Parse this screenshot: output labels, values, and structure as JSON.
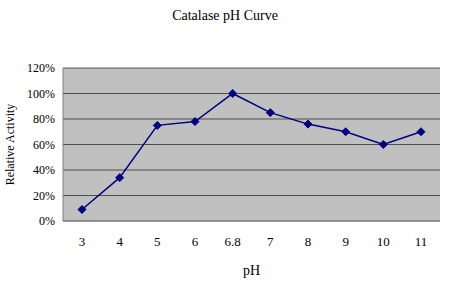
{
  "chart_data": {
    "type": "line",
    "title": "Catalase pH Curve",
    "x_label": "pH",
    "y_label": "Relative Activity",
    "categories": [
      "3",
      "4",
      "5",
      "6",
      "6.8",
      "7",
      "8",
      "9",
      "10",
      "11"
    ],
    "series": [
      {
        "name": "Relative Activity",
        "color": "#000080",
        "marker": "diamond",
        "values": [
          9,
          34,
          75,
          78,
          100,
          85,
          76,
          70,
          60,
          70
        ]
      }
    ],
    "ylim": [
      0,
      120
    ],
    "yticks": [
      {
        "value": 0,
        "label": "0%"
      },
      {
        "value": 20,
        "label": "20%"
      },
      {
        "value": 40,
        "label": "40%"
      },
      {
        "value": 60,
        "label": "60%"
      },
      {
        "value": 80,
        "label": "80%"
      },
      {
        "value": 100,
        "label": "100%"
      },
      {
        "value": 120,
        "label": "120%"
      }
    ],
    "grid": true
  }
}
